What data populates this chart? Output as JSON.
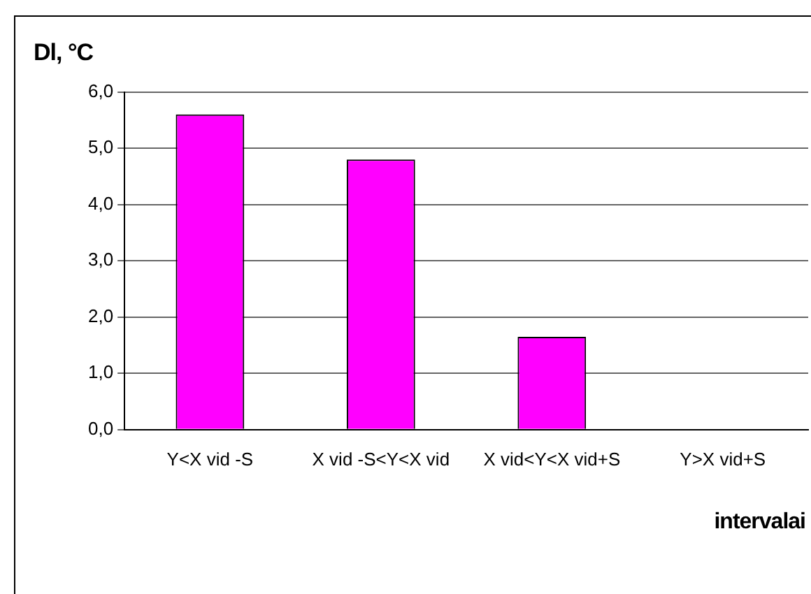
{
  "chart_data": {
    "type": "bar",
    "ylabel": "Dl, °C",
    "xlabel": "intervalai",
    "categories": [
      "Y<X vid -S",
      "X vid -S<Y<X vid",
      "X vid<Y<X vid+S",
      "Y>X vid+S"
    ],
    "values": [
      5.6,
      4.8,
      1.65,
      0
    ],
    "color": "#ff00ff",
    "ylim": [
      0,
      6
    ],
    "yticks": [
      {
        "value": 0,
        "label": "0,0"
      },
      {
        "value": 1,
        "label": "1,0"
      },
      {
        "value": 2,
        "label": "2,0"
      },
      {
        "value": 3,
        "label": "3,0"
      },
      {
        "value": 4,
        "label": "4,0"
      },
      {
        "value": 5,
        "label": "5,0"
      },
      {
        "value": 6,
        "label": "6,0"
      }
    ],
    "grid": "y",
    "legend": false
  }
}
